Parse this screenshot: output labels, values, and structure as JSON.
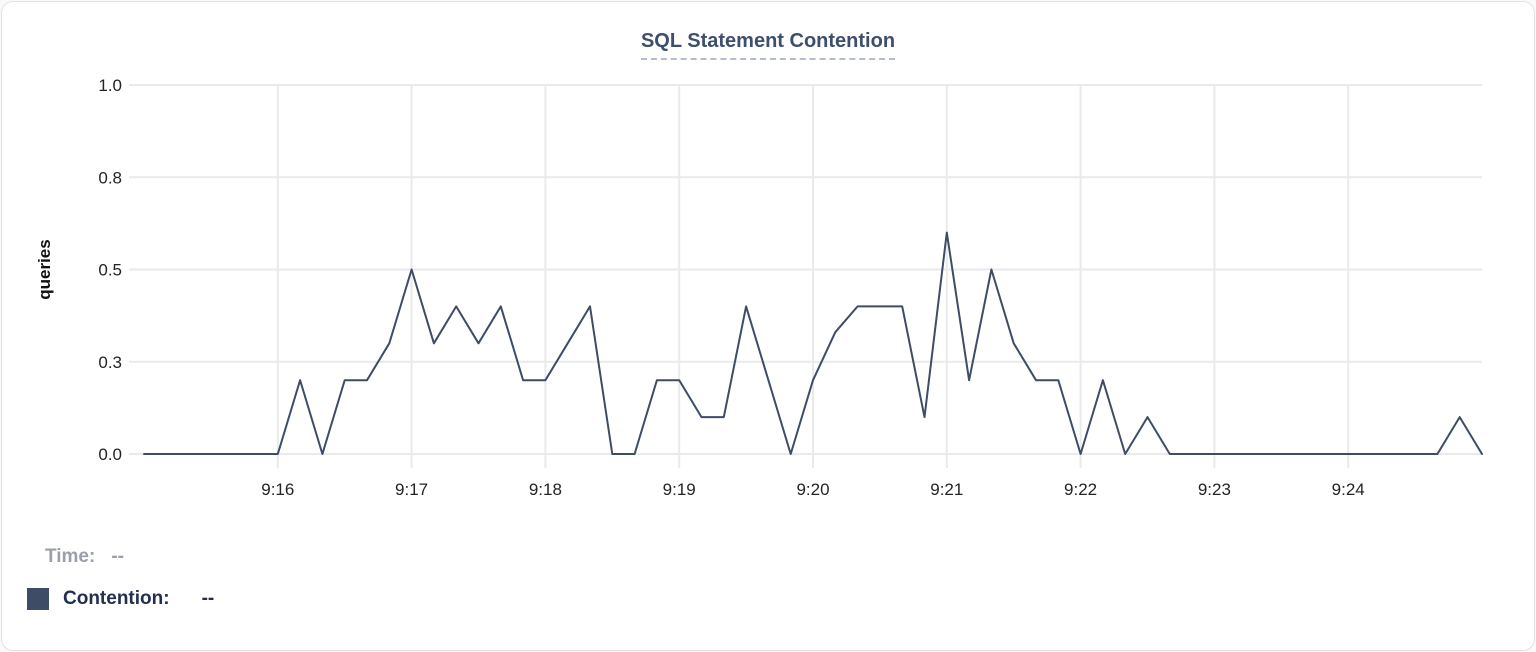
{
  "panel": {
    "title": "SQL Statement Contention"
  },
  "legend": {
    "time_label": "Time:",
    "time_value": "--",
    "series_label": "Contention:",
    "series_value": "--",
    "swatch_color": "#3e4c66"
  },
  "colors": {
    "title": "#3d4f6d",
    "title_underline": "#b4bcd2",
    "series_line": "#3e4c66",
    "gridline": "#e9eaec",
    "tick_label": "#242424",
    "legend_muted": "#9aa0ab",
    "legend_dark": "#22304f",
    "panel_border": "#e2e2e5",
    "background": "#ffffff"
  },
  "chart_data": {
    "type": "line",
    "title": "SQL Statement Contention",
    "xlabel": "",
    "ylabel": "queries",
    "ylim": [
      0,
      1
    ],
    "grid": true,
    "legend_position": "bottom-left",
    "time_start": "9:15:00",
    "time_end": "9:25:00",
    "sample_interval_seconds": 10,
    "x_ticks": [
      "9:16",
      "9:17",
      "9:18",
      "9:19",
      "9:20",
      "9:21",
      "9:22",
      "9:23",
      "9:24"
    ],
    "y_ticks": [
      {
        "label": "0.0",
        "value": 0
      },
      {
        "label": "0.3",
        "value": 0.25
      },
      {
        "label": "0.5",
        "value": 0.5
      },
      {
        "label": "0.8",
        "value": 0.75
      },
      {
        "label": "1.0",
        "value": 1
      }
    ],
    "series": [
      {
        "name": "Contention",
        "unit": "queries",
        "color": "#3e4c66",
        "values": [
          0,
          0,
          0,
          0,
          0,
          0,
          0,
          0.2,
          0,
          0.2,
          0.2,
          0.3,
          0.5,
          0.3,
          0.4,
          0.3,
          0.4,
          0.2,
          0.2,
          0.3,
          0.4,
          0,
          0,
          0.2,
          0.2,
          0.1,
          0.1,
          0.4,
          0.2,
          0,
          0.2,
          0.33,
          0.4,
          0.4,
          0.4,
          0.1,
          0.6,
          0.2,
          0.5,
          0.3,
          0.2,
          0.2,
          0,
          0.2,
          0,
          0.1,
          0,
          0,
          0,
          0,
          0,
          0,
          0,
          0,
          0,
          0,
          0,
          0,
          0,
          0.1,
          0
        ]
      }
    ]
  }
}
